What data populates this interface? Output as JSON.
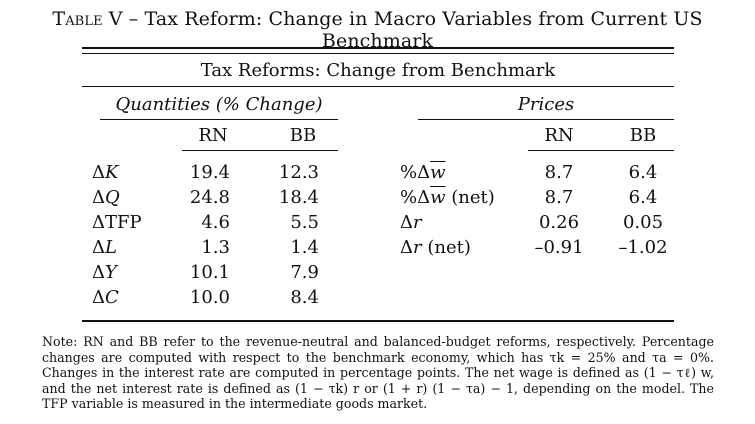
{
  "caption": {
    "label": "Table V",
    "dash": " – ",
    "title": "Tax Reform: Change in Macro Variables from Current US Benchmark"
  },
  "table": {
    "header": "Tax Reforms: Change from Benchmark",
    "left_group": "Quantities (% Change)",
    "right_group": "Prices",
    "columns": [
      "RN",
      "BB"
    ],
    "quantities": [
      {
        "label": "ΔK",
        "rn": "19.4",
        "bb": "12.3"
      },
      {
        "label": "ΔQ",
        "rn": "24.8",
        "bb": "18.4"
      },
      {
        "label": "ΔTFP",
        "rn": "4.6",
        "bb": "5.5"
      },
      {
        "label": "ΔL",
        "rn": "1.3",
        "bb": "1.4"
      },
      {
        "label": "ΔY",
        "rn": "10.1",
        "bb": "7.9"
      },
      {
        "label": "ΔC",
        "rn": "10.0",
        "bb": "8.4"
      }
    ],
    "prices": [
      {
        "label": "%Δw",
        "suffix": "",
        "rn": "8.7",
        "bb": "6.4"
      },
      {
        "label": "%Δw",
        "suffix": " (net)",
        "rn": "8.7",
        "bb": "6.4"
      },
      {
        "label": "Δr",
        "suffix": "",
        "rn": "0.26",
        "bb": "0.05"
      },
      {
        "label": "Δr",
        "suffix": " (net)",
        "rn": "–0.91",
        "bb": "–1.02"
      }
    ]
  },
  "note": "Note: RN and BB refer to the revenue-neutral and balanced-budget reforms, respectively. Percentage changes are computed with respect to the benchmark economy, which has τk = 25% and τa = 0%. Changes in the interest rate are computed in percentage points. The net wage is defined as (1 − τℓ) w, and the net interest rate is defined as (1 − τk) r or (1 + r) (1 − τa) − 1, depending on the model. The TFP variable is measured in the intermediate goods market."
}
